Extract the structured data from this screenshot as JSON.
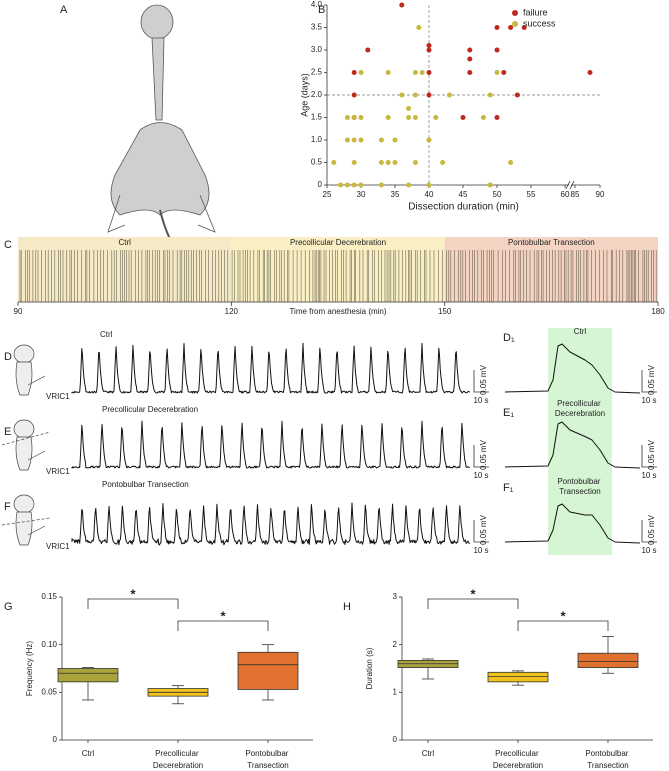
{
  "panel_labels": {
    "A": "A",
    "B": "B",
    "C": "C",
    "D": "D",
    "E": "E",
    "F": "F",
    "D1": "D₁",
    "E1": "E₁",
    "F1": "F₁",
    "G": "G",
    "H": "H"
  },
  "chart_data": [
    {
      "type": "scatter",
      "xlabel": "Dissection duration (min)",
      "ylabel": "Age (days)",
      "xlim": [
        25,
        90
      ],
      "x_break": [
        60,
        85
      ],
      "xticks": [
        25,
        30,
        35,
        40,
        45,
        50,
        55,
        60,
        85,
        90
      ],
      "ylim": [
        0,
        4
      ],
      "yticks": [
        0,
        {
          "value": 0.5,
          "label": "0.5"
        },
        {
          "value": 1,
          "label": "1.0"
        },
        {
          "value": 1.5,
          "label": "1.5"
        },
        {
          "value": 2,
          "label": "2.0"
        },
        {
          "value": 2.5,
          "label": "2.5"
        },
        {
          "value": 3,
          "label": "3.0"
        },
        {
          "value": 3.5,
          "label": "3.5"
        },
        {
          "value": 4,
          "label": "4.0"
        }
      ],
      "ref_lines": {
        "x": 40,
        "y": 2
      },
      "legend": "upper right",
      "series": [
        {
          "name": "failure",
          "color": "#c0281e",
          "x": [
            36,
            31,
            29,
            29,
            29,
            40,
            40,
            40,
            40,
            46,
            46,
            46,
            45,
            50,
            50,
            51,
            52,
            54,
            50,
            53,
            88
          ],
          "values": [
            4.0,
            3.0,
            2.5,
            2.0,
            1.5,
            3.0,
            3.1,
            2.5,
            2.0,
            3.0,
            2.8,
            2.5,
            1.5,
            3.5,
            3.0,
            2.5,
            3.5,
            3.5,
            1.5,
            2.0,
            2.5
          ]
        },
        {
          "name": "success",
          "color": "#c9b83e",
          "x": [
            38.5,
            30,
            34,
            38,
            39,
            36,
            38,
            43,
            49,
            50,
            28,
            29,
            30,
            34,
            37,
            38,
            37,
            48,
            28,
            29,
            30,
            33,
            35,
            40,
            26,
            29,
            33,
            34,
            35,
            38,
            42,
            52,
            27,
            28,
            29,
            30,
            33,
            37,
            40,
            49,
            41
          ],
          "values": [
            3.5,
            2.5,
            2.5,
            2.5,
            2.5,
            2.0,
            2.0,
            2.0,
            2.0,
            2.5,
            1.5,
            1.5,
            1.5,
            1.5,
            1.5,
            1.5,
            1.7,
            1.5,
            1.0,
            1.0,
            1.0,
            1.0,
            1.0,
            1.0,
            0.5,
            0.5,
            0.5,
            0.5,
            0.5,
            0.5,
            0.5,
            0.5,
            0,
            0,
            0,
            0,
            0,
            0,
            0,
            0,
            1.5
          ]
        }
      ]
    },
    {
      "type": "raster",
      "xlabel": "Time from anesthesia (min)",
      "xlim": [
        90,
        180
      ],
      "xticks": [
        90,
        120,
        150,
        180
      ],
      "segments": [
        {
          "name": "Ctrl",
          "start": 90,
          "end": 120,
          "color": "#f6e9c6"
        },
        {
          "name": "Precollicular Decerebration",
          "start": 120,
          "end": 150,
          "color": "#f9efc3"
        },
        {
          "name": "Pontobulbar Transection",
          "start": 150,
          "end": 180,
          "color": "#f4d3c3"
        }
      ]
    },
    {
      "type": "box",
      "ylabel": "Frequency (Hz)",
      "ylim": [
        0,
        0.15
      ],
      "yticks": [
        0,
        0.05,
        {
          "value": 0.1,
          "label": "0.10"
        },
        0.15
      ],
      "categories": [
        "Ctrl",
        "Precollicular Decerebration",
        "Pontobulbar Transection"
      ],
      "boxes": [
        {
          "min": 0.042,
          "q1": 0.061,
          "median": 0.07,
          "q3": 0.075,
          "max": 0.076,
          "color": "#a9a33c"
        },
        {
          "min": 0.038,
          "q1": 0.046,
          "median": 0.05,
          "q3": 0.054,
          "max": 0.057,
          "color": "#f2c21e"
        },
        {
          "min": 0.042,
          "q1": 0.053,
          "median": 0.079,
          "q3": 0.092,
          "max": 0.1,
          "color": "#e0712f"
        }
      ],
      "significance": [
        {
          "between": [
            0,
            1
          ],
          "label": "*"
        },
        {
          "between": [
            1,
            2
          ],
          "label": "*"
        }
      ]
    },
    {
      "type": "box",
      "ylabel": "Duration (s)",
      "ylim": [
        0,
        3
      ],
      "yticks": [
        0,
        1,
        2,
        3
      ],
      "categories": [
        "Ctrl",
        "Precollicular Decerebration",
        "Pontobulbar Transection"
      ],
      "boxes": [
        {
          "min": 1.28,
          "q1": 1.52,
          "median": 1.6,
          "q3": 1.67,
          "max": 1.7,
          "color": "#a9a33c"
        },
        {
          "min": 1.15,
          "q1": 1.22,
          "median": 1.33,
          "q3": 1.42,
          "max": 1.45,
          "color": "#f2c21e"
        },
        {
          "min": 1.4,
          "q1": 1.52,
          "median": 1.65,
          "q3": 1.82,
          "max": 2.17,
          "color": "#e0712f"
        }
      ],
      "significance": [
        {
          "between": [
            0,
            1
          ],
          "label": "*"
        },
        {
          "between": [
            1,
            2
          ],
          "label": "*"
        }
      ]
    }
  ],
  "traces": [
    {
      "title": "Ctrl",
      "electrode": "VRIC1",
      "scale_y": "0.05 mV",
      "scale_x": "10 s"
    },
    {
      "title": "Precollicular Decerebration",
      "electrode": "VRIC1",
      "scale_y": "0.05 mV",
      "scale_x": "10 s"
    },
    {
      "title": "Pontobulbar Transection",
      "electrode": "VRIC1",
      "scale_y": "0.05 mV",
      "scale_x": "10 s"
    }
  ],
  "zoom_traces": [
    {
      "title": "Ctrl",
      "scale_y": "0.05 mV",
      "scale_x": "10 s"
    },
    {
      "title": "Precollicular Decerebration",
      "scale_y": "0.05 mV",
      "scale_x": "10 s"
    },
    {
      "title": "Pontobulbar Transection",
      "scale_y": "0.05 mV",
      "scale_x": "10 s"
    }
  ],
  "zoom_highlight": "#d6f5d4"
}
